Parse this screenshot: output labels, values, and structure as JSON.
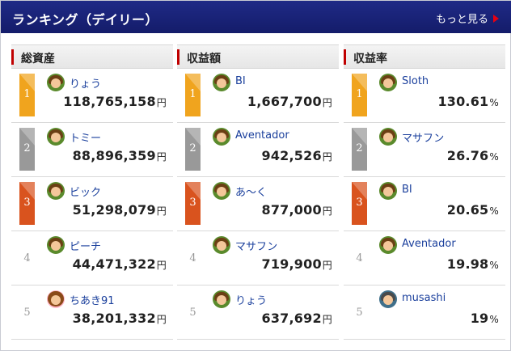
{
  "header": {
    "title": "ランキング（デイリー）",
    "more_label": "もっと見る"
  },
  "colors": {
    "header_bg": "#1a237e",
    "rank1": "#f0a41e",
    "rank2": "#999999",
    "rank3": "#d9531e",
    "name_link": "#1a3f9c",
    "more_arrow": "#e60012"
  },
  "columns": [
    {
      "title": "総資産",
      "unit": "円",
      "rows": [
        {
          "rank": "1",
          "name": "りょう",
          "value": "118,765,158",
          "avatar": "boy"
        },
        {
          "rank": "2",
          "name": "トミー",
          "value": "88,896,359",
          "avatar": "boy"
        },
        {
          "rank": "3",
          "name": "ビック",
          "value": "51,298,079",
          "avatar": "boy"
        },
        {
          "rank": "4",
          "name": "ピーチ",
          "value": "44,471,322",
          "avatar": "boy"
        },
        {
          "rank": "5",
          "name": "ちあき91",
          "value": "38,201,332",
          "avatar": "girl"
        }
      ]
    },
    {
      "title": "収益額",
      "unit": "円",
      "rows": [
        {
          "rank": "1",
          "name": "BI",
          "value": "1,667,700",
          "avatar": "boy"
        },
        {
          "rank": "2",
          "name": "Aventador",
          "value": "942,526",
          "avatar": "boy"
        },
        {
          "rank": "3",
          "name": "あ～く",
          "value": "877,000",
          "avatar": "boy"
        },
        {
          "rank": "4",
          "name": "マサフン",
          "value": "719,900",
          "avatar": "boy"
        },
        {
          "rank": "5",
          "name": "りょう",
          "value": "637,692",
          "avatar": "boy"
        }
      ]
    },
    {
      "title": "収益率",
      "unit": "%",
      "rows": [
        {
          "rank": "1",
          "name": "Sloth",
          "value": "130.61",
          "avatar": "boy"
        },
        {
          "rank": "2",
          "name": "マサフン",
          "value": "26.76",
          "avatar": "boy"
        },
        {
          "rank": "3",
          "name": "BI",
          "value": "20.65",
          "avatar": "boy"
        },
        {
          "rank": "4",
          "name": "Aventador",
          "value": "19.98",
          "avatar": "boy"
        },
        {
          "rank": "5",
          "name": "musashi",
          "value": "19",
          "avatar": "alt"
        }
      ]
    }
  ]
}
